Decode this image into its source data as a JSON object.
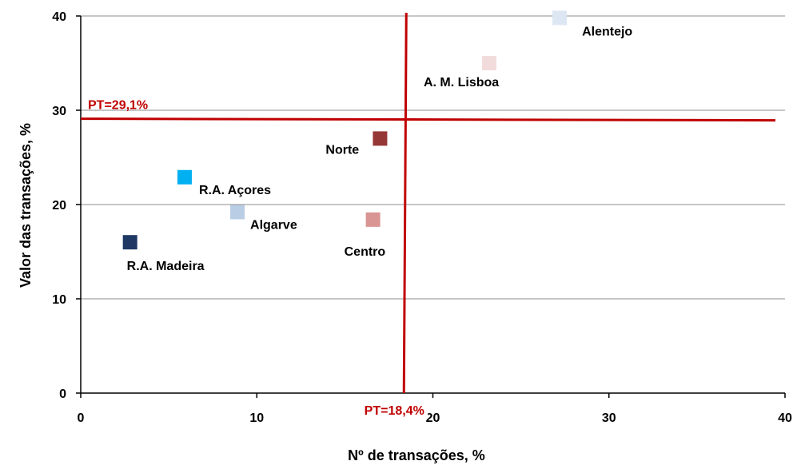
{
  "chart_data": {
    "type": "scatter",
    "xlabel": "Nº de transações, %",
    "ylabel": "Valor das transações, %",
    "xlim": [
      0,
      40
    ],
    "ylim": [
      0,
      40
    ],
    "x_ticks": [
      "0",
      "10",
      "20",
      "30",
      "40"
    ],
    "y_ticks": [
      "0",
      "10",
      "20",
      "30",
      "40"
    ],
    "grid": "horizontal",
    "reference_lines": {
      "horizontal": {
        "label": "PT=29,1%",
        "value": 29.1,
        "color": "#c00000"
      },
      "vertical": {
        "label": "PT=18,4%",
        "value": 18.4,
        "color": "#c00000"
      }
    },
    "points": [
      {
        "label": "Alentejo",
        "x": 27.2,
        "y": 39.8,
        "color": "#dde6f3"
      },
      {
        "label": "A. M. Lisboa",
        "x": 23.2,
        "y": 35.0,
        "color": "#f2dcdb"
      },
      {
        "label": "Norte",
        "x": 17.0,
        "y": 27.0,
        "color": "#953735"
      },
      {
        "label": "R.A. Açores",
        "x": 5.9,
        "y": 22.9,
        "color": "#00b0f0"
      },
      {
        "label": "Algarve",
        "x": 8.9,
        "y": 19.2,
        "color": "#b9cde5"
      },
      {
        "label": "Centro",
        "x": 16.6,
        "y": 18.4,
        "color": "#d99594"
      },
      {
        "label": "R.A. Madeira",
        "x": 2.8,
        "y": 16.0,
        "color": "#1f3864"
      }
    ]
  }
}
